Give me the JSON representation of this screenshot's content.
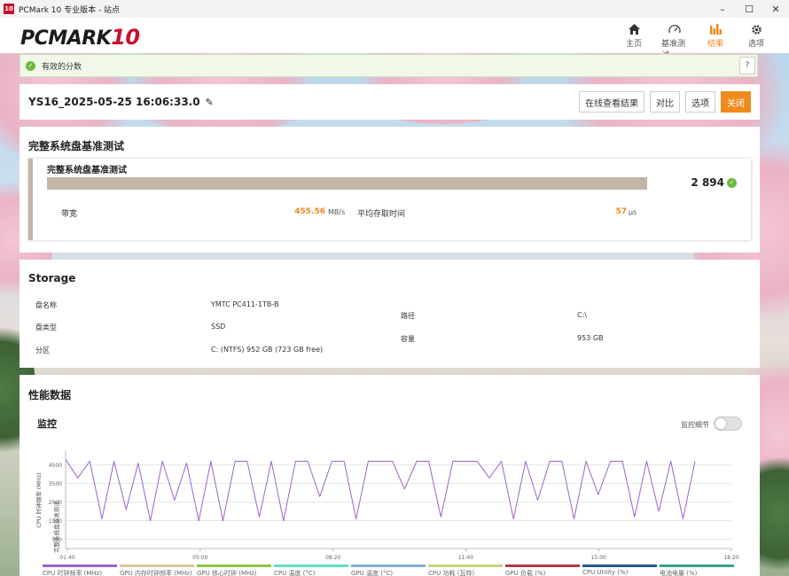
{
  "window": {
    "app_icon_text": "10",
    "title": "PCMark 10 专业版本 - 站点",
    "controls": [
      "–",
      "☐",
      "✕"
    ]
  },
  "header": {
    "logo_main": "PCMARK",
    "logo_ten": "10",
    "nav": [
      {
        "label": "主页",
        "icon": "home-icon",
        "active": false
      },
      {
        "label": "基准测试",
        "icon": "gauge-icon",
        "active": false
      },
      {
        "label": "结果",
        "icon": "bar-chart-icon",
        "active": true
      },
      {
        "label": "选项",
        "icon": "gear-icon",
        "active": false
      }
    ]
  },
  "banner": {
    "text": "有效的分数",
    "help": "?"
  },
  "result": {
    "name": "YS16_2025-05-25 16:06:33.0",
    "actions": {
      "view_online": "在线查看结果",
      "compare": "对比",
      "options": "选项",
      "close": "关闭"
    }
  },
  "benchmark": {
    "section_title": "完整系统盘基准测试",
    "card_title": "完整系统盘基准测试",
    "score": "2 894",
    "bandwidth_label": "带宽",
    "bandwidth_value": "455.56",
    "bandwidth_unit": "MB/s",
    "access_label": "平均存取时间",
    "access_value": "57",
    "access_unit": "μs"
  },
  "storage": {
    "section_title": "Storage",
    "disk_name_label": "盘名称",
    "disk_name": "YMTC PC411-1TB-B",
    "disk_type_label": "盘类型",
    "disk_type": "SSD",
    "partition_label": "分区",
    "partition": "C: (NTFS) 952 GB (723 GB free)",
    "path_label": "路径",
    "path": "C:\\",
    "capacity_label": "容量",
    "capacity": "953 GB"
  },
  "performance": {
    "section_title": "性能数据",
    "monitor_title": "监控",
    "monitor_detail_label": "监控细节"
  },
  "chart_data": {
    "type": "line",
    "ylabel": "CPU 时钟频率 (MHz)",
    "y2label": "完整系统盘基准测试",
    "x_ticks": [
      "01:40",
      "05:00",
      "08:20",
      "11:40",
      "15:00",
      "18:20"
    ],
    "y_ticks": [
      500,
      1500,
      2500,
      3500,
      4500
    ],
    "xlim": [
      0,
      1100
    ],
    "ylim": [
      0,
      5200
    ],
    "series": [
      {
        "name": "CPU 时钟频率 (MHz)",
        "color": "#9a64c8",
        "x": [
          0,
          20,
          40,
          60,
          80,
          100,
          120,
          140,
          160,
          180,
          200,
          220,
          240,
          260,
          280,
          300,
          320,
          340,
          360,
          380,
          400,
          420,
          440,
          460,
          480,
          500,
          520,
          540,
          560,
          580,
          600,
          620,
          640,
          660,
          680,
          700,
          720,
          740,
          760,
          780,
          800,
          820,
          840,
          860,
          880,
          900,
          920,
          940,
          960,
          980,
          1000,
          1020,
          1040
        ],
        "y": [
          4800,
          3800,
          4700,
          1600,
          4700,
          2100,
          4600,
          1500,
          4700,
          2600,
          4600,
          1500,
          4700,
          1500,
          4700,
          4700,
          1700,
          4700,
          1500,
          4700,
          4700,
          2800,
          4700,
          4700,
          1600,
          4700,
          4700,
          4700,
          3200,
          4700,
          4700,
          1700,
          4700,
          4700,
          4700,
          3800,
          4700,
          1600,
          4700,
          2600,
          4700,
          4700,
          1600,
          4700,
          2900,
          4700,
          4700,
          1700,
          4700,
          2000,
          4700,
          1600,
          4700
        ]
      }
    ],
    "legend": [
      {
        "name": "CPU 时钟频率 (MHz)",
        "color": "#9a64c8"
      },
      {
        "name": "GPU 内存时钟频率 (MHz)",
        "color": "#d6c89a"
      },
      {
        "name": "GPU 核心时钟 (MHz)",
        "color": "#8cc63f"
      },
      {
        "name": "CPU 温度 (°C)",
        "color": "#5ee0c0"
      },
      {
        "name": "GPU 温度 (°C)",
        "color": "#7fb0d8"
      },
      {
        "name": "CPU 功耗 (瓦特)",
        "color": "#c8d27a"
      },
      {
        "name": "GPU 负载 (%)",
        "color": "#b03a48"
      },
      {
        "name": "CPU Utility (%)",
        "color": "#1f5a8a"
      },
      {
        "name": "电池电量 (%)",
        "color": "#3aa08a"
      }
    ]
  },
  "colors": {
    "accent": "#f08a1c",
    "valid": "#6cbb3c",
    "bar": "#c4b6a7"
  }
}
